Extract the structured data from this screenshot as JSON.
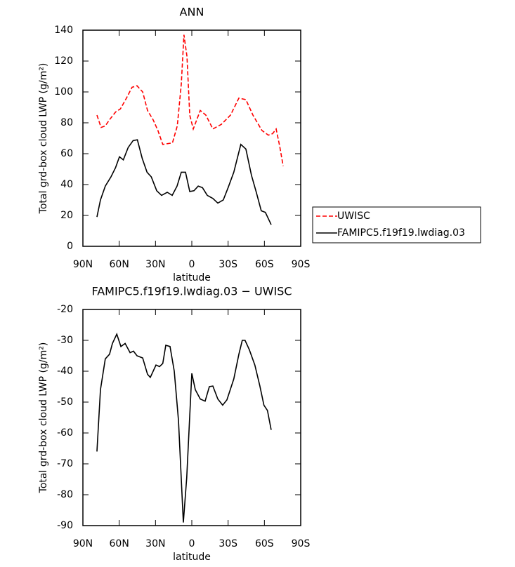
{
  "chart_data": [
    {
      "type": "line",
      "title": "ANN",
      "xlabel": "latitude",
      "ylabel": "Total grd-box cloud LWP (g/m²)",
      "xlim": [
        90,
        -90
      ],
      "xticks": [
        {
          "value": 90,
          "label": "90N"
        },
        {
          "value": 60,
          "label": "60N"
        },
        {
          "value": 30,
          "label": "30N"
        },
        0,
        {
          "value": -30,
          "label": "30S"
        },
        {
          "value": -60,
          "label": "60S"
        },
        {
          "value": -90,
          "label": "90S"
        }
      ],
      "ylim": [
        0,
        140
      ],
      "yticks": [
        0,
        20,
        40,
        60,
        80,
        100,
        120,
        140
      ],
      "legend": "right",
      "series": [
        {
          "name": "UWISC",
          "color": "#ff0000",
          "dashed": true,
          "x": [
            78.4,
            75,
            71.5,
            68,
            63,
            59,
            54,
            49.4,
            45.3,
            40.6,
            36.6,
            32,
            28,
            24,
            16,
            12,
            8.7,
            6.5,
            4,
            1.7,
            -1.2,
            -7,
            -11.6,
            -17.4,
            -24.4,
            -32,
            -38.9,
            -44.7,
            -50.5,
            -58,
            -63.3,
            -66.8,
            -69.7,
            -72.6,
            -75.5
          ],
          "values": [
            85,
            77,
            78,
            82,
            87,
            89,
            96,
            103,
            104,
            100,
            88,
            82,
            75,
            66,
            67,
            78,
            105,
            137,
            123,
            85,
            76,
            88,
            85,
            76,
            79,
            85,
            96,
            95,
            85,
            75,
            72,
            73,
            76,
            65,
            52
          ]
        },
        {
          "name": "FAMIPC5.f19f19.lwdiag.03",
          "color": "#000000",
          "dashed": false,
          "x": [
            78.4,
            75.5,
            71.5,
            66.8,
            63,
            59.8,
            56.6,
            52.6,
            48.5,
            45,
            41,
            37,
            33.5,
            29,
            25,
            20.3,
            16.2,
            12.2,
            8.7,
            5.2,
            1.7,
            -1.8,
            -5.3,
            -8.8,
            -12.8,
            -17.4,
            -21.5,
            -26,
            -30,
            -34.7,
            -40.5,
            -44.7,
            -49.3,
            -53.3,
            -57.4,
            -60.8,
            -65.6
          ],
          "values": [
            19,
            30,
            39,
            45,
            51,
            58,
            56,
            64,
            68.5,
            69,
            57,
            48,
            45,
            36,
            33,
            35,
            33,
            39,
            48,
            48,
            35.5,
            36,
            39,
            38,
            33,
            31,
            28,
            30,
            38,
            48,
            66,
            63,
            46,
            35,
            23,
            22,
            14
          ]
        }
      ]
    },
    {
      "type": "line",
      "title": "FAMIPC5.f19f19.lwdiag.03 − UWISC",
      "xlabel": "latitude",
      "ylabel": "Total grd-box cloud LWP (g/m²)",
      "xlim": [
        90,
        -90
      ],
      "xticks": [
        {
          "value": 90,
          "label": "90N"
        },
        {
          "value": 60,
          "label": "60N"
        },
        {
          "value": 30,
          "label": "30N"
        },
        0,
        {
          "value": -30,
          "label": "30S"
        },
        {
          "value": -60,
          "label": "60S"
        },
        {
          "value": -90,
          "label": "90S"
        }
      ],
      "ylim": [
        -90,
        -20
      ],
      "yticks": [
        -90,
        -80,
        -70,
        -60,
        -50,
        -40,
        -30,
        -20
      ],
      "color": "#000000",
      "x": [
        78.4,
        75.5,
        71.5,
        68,
        65.6,
        62,
        58.6,
        55.1,
        51,
        48.2,
        45.3,
        40.6,
        36.6,
        34.3,
        29.6,
        26.7,
        24,
        21.5,
        18,
        14.5,
        11,
        7,
        4.2,
        0,
        -2.9,
        -7,
        -11,
        -14.5,
        -17.4,
        -21.5,
        -25.5,
        -29,
        -34.7,
        -38.9,
        -41.7,
        -44,
        -47.5,
        -52.1,
        -56.2,
        -59.6,
        -62.5,
        -65.6
      ],
      "values": [
        -66,
        -46,
        -36,
        -34.5,
        -31,
        -28,
        -32,
        -31,
        -34,
        -33.5,
        -35,
        -35.7,
        -41,
        -42,
        -38,
        -38.5,
        -37.5,
        -31.6,
        -32,
        -40,
        -56,
        -89,
        -74.5,
        -40.7,
        -46,
        -49,
        -49.7,
        -45,
        -44.8,
        -49,
        -51,
        -49.3,
        -42.5,
        -34.5,
        -30,
        -30,
        -33,
        -38,
        -44.7,
        -51,
        -52.7,
        -59
      ]
    }
  ]
}
